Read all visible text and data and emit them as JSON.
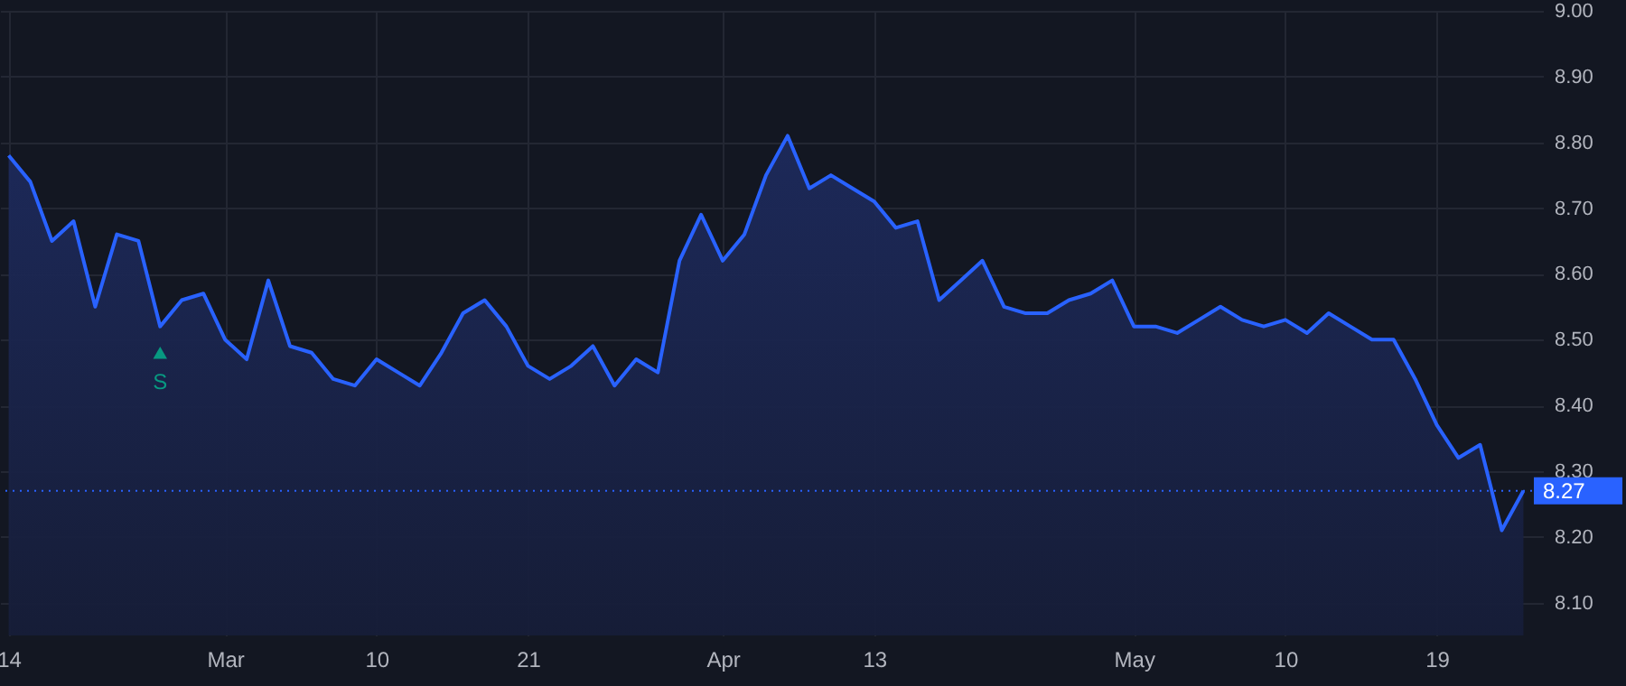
{
  "chart_data": {
    "type": "area",
    "categories": [
      "14",
      null,
      null,
      null,
      null,
      null,
      null,
      null,
      null,
      null,
      "Mar",
      null,
      null,
      null,
      null,
      null,
      null,
      "10",
      null,
      null,
      null,
      null,
      null,
      null,
      "21",
      null,
      null,
      null,
      null,
      null,
      null,
      null,
      null,
      "Apr",
      null,
      null,
      null,
      null,
      null,
      null,
      "13",
      null,
      null,
      null,
      null,
      null,
      null,
      null,
      null,
      null,
      null,
      null,
      "May",
      null,
      null,
      null,
      null,
      null,
      null,
      "10",
      null,
      null,
      null,
      null,
      null,
      null,
      "19",
      null,
      null,
      null,
      null
    ],
    "series": [
      {
        "color": "#2962ff",
        "values": [
          8.78,
          8.74,
          8.65,
          8.68,
          8.55,
          8.66,
          8.65,
          8.52,
          8.56,
          8.57,
          8.5,
          8.47,
          8.59,
          8.49,
          8.48,
          8.44,
          8.43,
          8.47,
          8.45,
          8.43,
          8.48,
          8.54,
          8.56,
          8.52,
          8.46,
          8.44,
          8.46,
          8.49,
          8.43,
          8.47,
          8.45,
          8.62,
          8.69,
          8.62,
          8.66,
          8.75,
          8.81,
          8.73,
          8.75,
          8.73,
          8.71,
          8.67,
          8.68,
          8.56,
          8.59,
          8.62,
          8.55,
          8.54,
          8.54,
          8.56,
          8.57,
          8.59,
          8.52,
          8.52,
          8.51,
          8.53,
          8.55,
          8.53,
          8.52,
          8.53,
          8.51,
          8.54,
          8.52,
          8.5,
          8.5,
          8.44,
          8.37,
          8.32,
          8.34,
          8.21,
          8.27
        ]
      },
      {
        "type": "scatter",
        "marker": "triangle",
        "color": "#089981",
        "values": [
          null,
          null,
          null,
          null,
          null,
          null,
          null,
          8.48,
          null,
          null,
          null,
          null,
          null,
          null,
          null,
          null,
          null,
          null,
          null,
          null,
          null,
          null,
          null,
          null,
          null,
          null,
          null,
          null,
          null,
          null,
          null,
          null,
          null,
          null,
          null,
          null,
          null,
          null,
          null,
          null,
          null,
          null,
          null,
          null,
          null,
          null,
          null,
          null,
          null,
          null,
          null,
          null,
          null,
          null,
          null,
          null,
          null,
          null,
          null,
          null,
          null,
          null,
          null,
          null,
          null,
          null,
          null,
          null,
          null,
          null,
          null
        ],
        "value_labels": [
          null,
          null,
          null,
          null,
          null,
          null,
          null,
          "S",
          null,
          null,
          null,
          null,
          null,
          null,
          null,
          null,
          null,
          null,
          null,
          null,
          null,
          null,
          null,
          null,
          null,
          null,
          null,
          null,
          null,
          null,
          null,
          null,
          null,
          null,
          null,
          null,
          null,
          null,
          null,
          null,
          null,
          null,
          null,
          null,
          null,
          null,
          null,
          null,
          null,
          null,
          null,
          null,
          null,
          null,
          null,
          null,
          null,
          null,
          null,
          null,
          null,
          null,
          null,
          null,
          null,
          null,
          null,
          null,
          null,
          null,
          null
        ]
      }
    ],
    "ylim": [
      8.05,
      9.0
    ],
    "yticks": [
      {
        "value": 8.1,
        "label": "8.10"
      },
      {
        "value": 8.2,
        "label": "8.20"
      },
      {
        "value": 8.3,
        "label": "8.30"
      },
      {
        "value": 8.4,
        "label": "8.40"
      },
      {
        "value": 8.5,
        "label": "8.50"
      },
      {
        "value": 8.6,
        "label": "8.60"
      },
      {
        "value": 8.7,
        "label": "8.70"
      },
      {
        "value": 8.8,
        "label": "8.80"
      },
      {
        "value": 8.9,
        "label": "8.90"
      },
      {
        "value": 9.0,
        "label": "9.00"
      }
    ],
    "ref_lines": [
      {
        "axis": "y",
        "value": 8.27,
        "label": "8.27",
        "color": "#2962ff",
        "line_style": "dotted"
      }
    ],
    "grid": true
  }
}
